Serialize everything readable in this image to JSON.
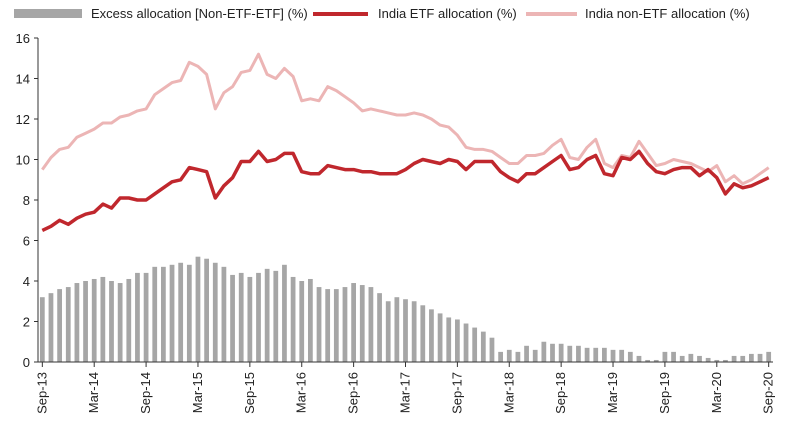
{
  "chart_data": {
    "type": "bar+line",
    "ylim": [
      0,
      16
    ],
    "yticks": [
      0,
      2,
      4,
      6,
      8,
      10,
      12,
      14,
      16
    ],
    "xticks": [
      "Sep-13",
      "Mar-14",
      "Sep-14",
      "Mar-15",
      "Sep-15",
      "Mar-16",
      "Sep-16",
      "Mar-17",
      "Sep-17",
      "Mar-18",
      "Sep-18",
      "Mar-19",
      "Sep-19",
      "Mar-20",
      "Sep-20"
    ],
    "n_months": 85,
    "grid": false,
    "legend": "top",
    "series": [
      {
        "name": "Excess allocation [Non-ETF-ETF] (%)",
        "kind": "bar",
        "color": "#a6a6a6",
        "values": [
          3.2,
          3.4,
          3.6,
          3.7,
          3.9,
          4.0,
          4.1,
          4.2,
          4.0,
          3.9,
          4.1,
          4.4,
          4.4,
          4.7,
          4.7,
          4.8,
          4.9,
          4.8,
          5.2,
          5.1,
          4.9,
          4.7,
          4.3,
          4.4,
          4.2,
          4.4,
          4.6,
          4.5,
          4.8,
          4.2,
          4.0,
          4.1,
          3.7,
          3.6,
          3.6,
          3.7,
          3.9,
          3.8,
          3.7,
          3.4,
          3.0,
          3.2,
          3.1,
          3.0,
          2.8,
          2.6,
          2.4,
          2.2,
          2.1,
          1.9,
          1.7,
          1.5,
          1.2,
          0.5,
          0.6,
          0.5,
          0.8,
          0.6,
          1.0,
          0.9,
          0.9,
          0.8,
          0.8,
          0.7,
          0.7,
          0.7,
          0.6,
          0.6,
          0.5,
          0.3,
          0.1,
          0.1,
          0.5,
          0.5,
          0.3,
          0.4,
          0.3,
          0.2,
          0.1,
          0.1,
          0.3,
          0.3,
          0.4,
          0.4,
          0.5
        ]
      },
      {
        "name": "India ETF allocation (%)",
        "kind": "line",
        "color": "#c0272d",
        "values": [
          6.5,
          6.7,
          7.0,
          6.8,
          7.1,
          7.3,
          7.4,
          7.8,
          7.6,
          8.1,
          8.1,
          8.0,
          8.0,
          8.3,
          8.6,
          8.9,
          9.0,
          9.6,
          9.5,
          9.4,
          8.1,
          8.7,
          9.1,
          9.9,
          9.9,
          10.4,
          9.9,
          10.0,
          10.3,
          10.3,
          9.4,
          9.3,
          9.3,
          9.7,
          9.6,
          9.5,
          9.5,
          9.4,
          9.4,
          9.3,
          9.3,
          9.3,
          9.5,
          9.8,
          10.0,
          9.9,
          9.8,
          10.0,
          9.9,
          9.5,
          9.9,
          9.9,
          9.9,
          9.4,
          9.1,
          8.9,
          9.3,
          9.3,
          9.6,
          9.9,
          10.2,
          9.5,
          9.6,
          10.0,
          10.2,
          9.3,
          9.2,
          10.1,
          10.0,
          10.4,
          9.8,
          9.4,
          9.3,
          9.5,
          9.6,
          9.6,
          9.2,
          9.5,
          9.1,
          8.3,
          8.8,
          8.6,
          8.7,
          8.9,
          9.1
        ]
      },
      {
        "name": "India non-ETF allocation (%)",
        "kind": "line",
        "color": "#ecb5b5",
        "values": [
          9.5,
          10.1,
          10.5,
          10.6,
          11.1,
          11.3,
          11.5,
          11.8,
          11.8,
          12.1,
          12.2,
          12.4,
          12.5,
          13.2,
          13.5,
          13.8,
          13.9,
          14.8,
          14.6,
          14.2,
          12.5,
          13.3,
          13.6,
          14.3,
          14.4,
          15.2,
          14.2,
          14.0,
          14.5,
          14.1,
          12.9,
          13.0,
          12.9,
          13.6,
          13.4,
          13.1,
          12.8,
          12.4,
          12.5,
          12.4,
          12.3,
          12.2,
          12.2,
          12.3,
          12.2,
          12.0,
          11.7,
          11.6,
          11.2,
          10.6,
          10.5,
          10.5,
          10.4,
          10.1,
          9.8,
          9.8,
          10.2,
          10.2,
          10.3,
          10.7,
          11.0,
          10.1,
          10.0,
          10.6,
          11.0,
          9.8,
          9.6,
          10.2,
          10.1,
          10.9,
          10.3,
          9.7,
          9.8,
          10.0,
          9.9,
          9.8,
          9.6,
          9.4,
          9.7,
          8.9,
          9.2,
          8.8,
          9.0,
          9.3,
          9.6
        ]
      }
    ]
  }
}
